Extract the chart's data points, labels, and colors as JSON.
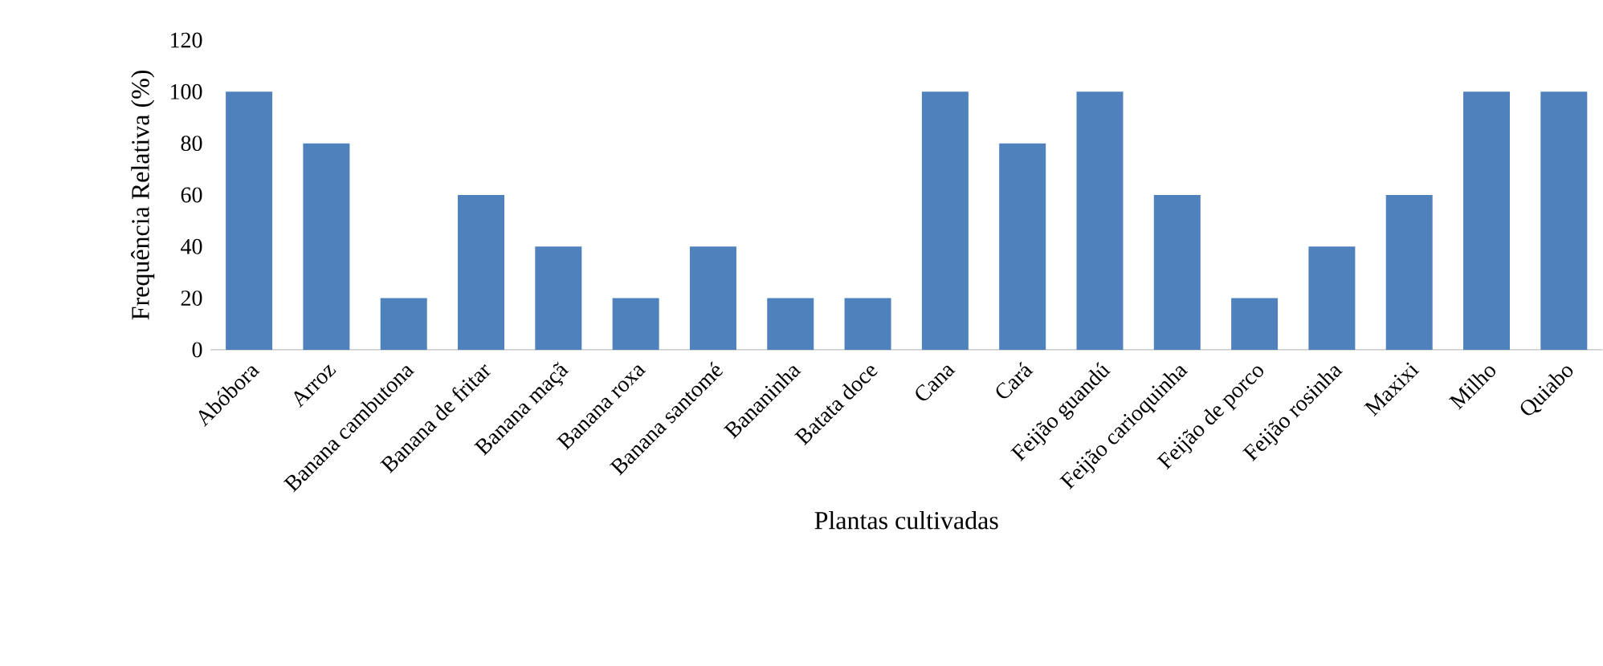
{
  "chart_data": {
    "type": "bar",
    "categories": [
      "Abóbora",
      "Arroz",
      "Banana cambutona",
      "Banana de fritar",
      "Banana maçã",
      "Banana roxa",
      "Banana santomé",
      "Bananinha",
      "Batata doce",
      "Cana",
      "Cará",
      "Feijão guandú",
      "Feijão carioquinha",
      "Feijão de porco",
      "Feijão rosinha",
      "Maxixi",
      "Milho",
      "Quiabo"
    ],
    "values": [
      100,
      80,
      20,
      60,
      40,
      20,
      40,
      20,
      20,
      100,
      80,
      100,
      60,
      20,
      40,
      60,
      100,
      100
    ],
    "color": "#4f81bd",
    "ylim": [
      0,
      120
    ],
    "yticks": [
      0,
      20,
      40,
      60,
      80,
      100,
      120
    ],
    "xlabel": "Plantas cultivadas",
    "ylabel": "Frequência Relativa (%)"
  }
}
